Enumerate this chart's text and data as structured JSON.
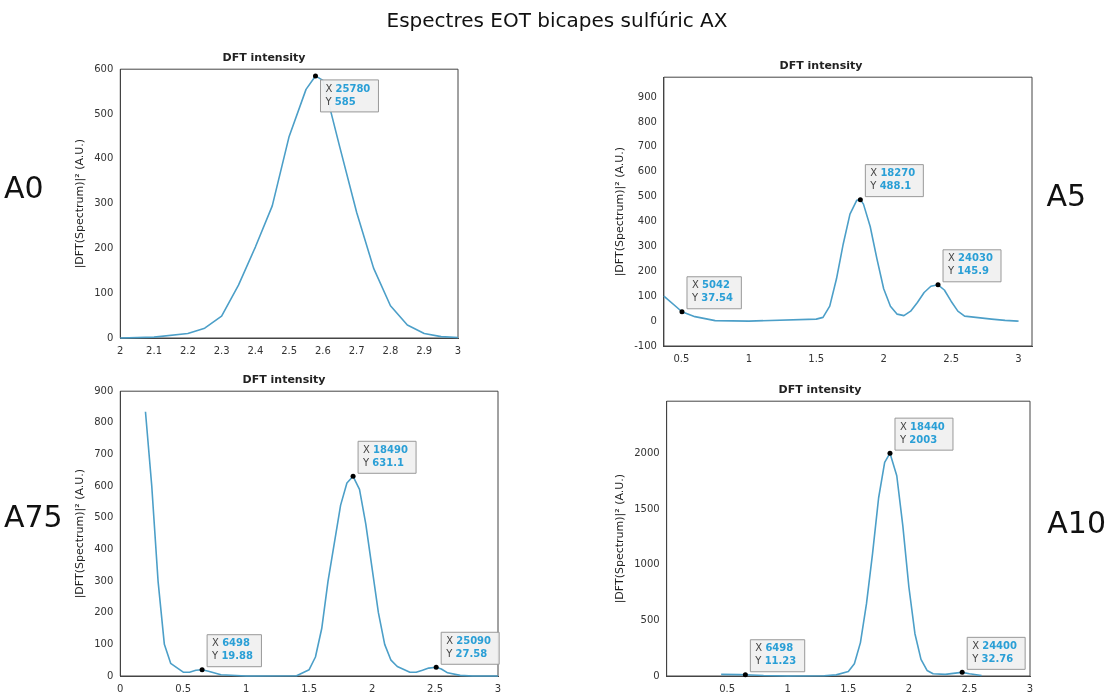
{
  "chart_data": [
    {
      "type": "line",
      "title": "DFT intensity",
      "subtitle": "A0",
      "ylabel": "|DFT(Spectrum)|² (A.U.)",
      "xlim": [
        2,
        3
      ],
      "xticks": [
        2,
        2.1,
        2.2,
        2.3,
        2.4,
        2.5,
        2.6,
        2.7,
        2.8,
        2.9,
        3
      ],
      "ylim": [
        0,
        600
      ],
      "yticks": [
        0,
        100,
        200,
        300,
        400,
        500,
        600
      ],
      "grid": false,
      "series": [
        {
          "color": "#4c9fc8",
          "x": [
            2,
            2.1,
            2.2,
            2.25,
            2.3,
            2.35,
            2.4,
            2.45,
            2.5,
            2.55,
            2.578,
            2.6,
            2.65,
            2.7,
            2.75,
            2.8,
            2.85,
            2.9,
            2.95,
            3
          ],
          "values": [
            0,
            2,
            10,
            22,
            49,
            118,
            203,
            295,
            450,
            555,
            585,
            575,
            426,
            280,
            156,
            72,
            29,
            10,
            3,
            1
          ]
        }
      ],
      "annotations": [
        "Espectres EOT bicapes sulfúric AX",
        {
          "text": "X 25780\nY 585",
          "x": 2.578,
          "y": 585
        }
      ]
    },
    {
      "type": "line",
      "title": "DFT intensity",
      "subtitle": "A5",
      "ylabel": "|DFT(Spectrum)|² (A.U.)",
      "xlim": [
        0.37,
        3.1
      ],
      "xticks": [
        0.5,
        1,
        1.5,
        2,
        2.5,
        3
      ],
      "ylim": [
        -100,
        980
      ],
      "yticks": [
        -100,
        0,
        100,
        200,
        300,
        400,
        500,
        600,
        700,
        800,
        900
      ],
      "grid": false,
      "series": [
        {
          "color": "#4c9fc8",
          "x": [
            0.37,
            0.5042,
            0.6,
            0.75,
            1,
            1.5,
            1.55,
            1.6,
            1.65,
            1.7,
            1.75,
            1.8,
            1.827,
            1.85,
            1.9,
            1.95,
            2,
            2.05,
            2.1,
            2.15,
            2.2,
            2.25,
            2.3,
            2.35,
            2.403,
            2.45,
            2.5,
            2.55,
            2.6,
            2.7,
            2.8,
            2.9,
            3
          ],
          "values": [
            100,
            37.54,
            18,
            2,
            0,
            8,
            15,
            60,
            170,
            310,
            430,
            485,
            488.1,
            470,
            380,
            250,
            130,
            60,
            28,
            22,
            40,
            75,
            115,
            140,
            145.9,
            125,
            80,
            40,
            20,
            14,
            8,
            3,
            0
          ]
        }
      ],
      "annotations": [
        {
          "text": "X 5042\nY 37.54",
          "x": 0.5042,
          "y": 37.54
        },
        {
          "text": "X 18270\nY 488.1",
          "x": 1.827,
          "y": 488.1
        },
        {
          "text": "X 24030\nY 145.9",
          "x": 2.403,
          "y": 145.9
        }
      ]
    },
    {
      "type": "line",
      "title": "DFT intensity",
      "subtitle": "A75",
      "ylabel": "|DFT(Spectrum)|² (A.U.)",
      "xlim": [
        0,
        3
      ],
      "xticks": [
        0,
        0.5,
        1,
        1.5,
        2,
        2.5,
        3
      ],
      "ylim": [
        0,
        900
      ],
      "yticks": [
        0,
        100,
        200,
        300,
        400,
        500,
        600,
        700,
        800,
        900
      ],
      "grid": false,
      "series": [
        {
          "color": "#4c9fc8",
          "x": [
            0.2,
            0.25,
            0.3,
            0.35,
            0.4,
            0.5,
            0.55,
            0.6,
            0.6498,
            0.7,
            0.8,
            1,
            1.4,
            1.5,
            1.55,
            1.6,
            1.65,
            1.7,
            1.75,
            1.8,
            1.849,
            1.9,
            1.95,
            2,
            2.05,
            2.1,
            2.15,
            2.2,
            2.3,
            2.35,
            2.4,
            2.45,
            2.509,
            2.55,
            2.6,
            2.7,
            2.8,
            3
          ],
          "values": [
            835,
            600,
            300,
            100,
            40,
            12,
            12,
            18,
            19.88,
            15,
            4,
            0,
            1,
            20,
            60,
            150,
            300,
            420,
            540,
            610,
            631.1,
            590,
            480,
            340,
            200,
            100,
            50,
            30,
            12,
            12,
            18,
            25,
            27.58,
            22,
            10,
            2,
            0,
            0
          ]
        }
      ],
      "annotations": [
        {
          "text": "X 6498\nY 19.88",
          "x": 0.6498,
          "y": 19.88
        },
        {
          "text": "X 18490\nY 631.1",
          "x": 1.849,
          "y": 631.1
        },
        {
          "text": "X 25090\nY 27.58",
          "x": 2.509,
          "y": 27.58
        }
      ]
    },
    {
      "type": "line",
      "title": "DFT intensity",
      "subtitle": "A10",
      "ylabel": "|DFT(Spectrum)|² (A.U.)",
      "xlim": [
        0,
        3
      ],
      "xticks": [
        0.5,
        1,
        1.5,
        2,
        2.5,
        3
      ],
      "ylim": [
        0,
        2470
      ],
      "yticks": [
        0,
        500,
        1000,
        1500,
        2000
      ],
      "grid": false,
      "series": [
        {
          "color": "#4c9fc8",
          "x": [
            0.45,
            0.6,
            0.6498,
            0.8,
            1,
            1.3,
            1.4,
            1.5,
            1.55,
            1.6,
            1.65,
            1.7,
            1.75,
            1.8,
            1.844,
            1.9,
            1.95,
            2,
            2.05,
            2.1,
            2.15,
            2.2,
            2.3,
            2.4,
            2.44,
            2.5,
            2.6
          ],
          "values": [
            15,
            12,
            11.23,
            4,
            0,
            2,
            10,
            40,
            110,
            300,
            650,
            1100,
            1600,
            1920,
            2003,
            1800,
            1350,
            800,
            380,
            150,
            50,
            20,
            15,
            28,
            32.76,
            20,
            5
          ]
        }
      ],
      "annotations": [
        {
          "text": "X 6498\nY 11.23",
          "x": 0.6498,
          "y": 11.23
        },
        {
          "text": "X 18440\nY 2003",
          "x": 1.844,
          "y": 2003
        },
        {
          "text": "X 24400\nY 32.76",
          "x": 2.44,
          "y": 32.76
        }
      ]
    }
  ]
}
